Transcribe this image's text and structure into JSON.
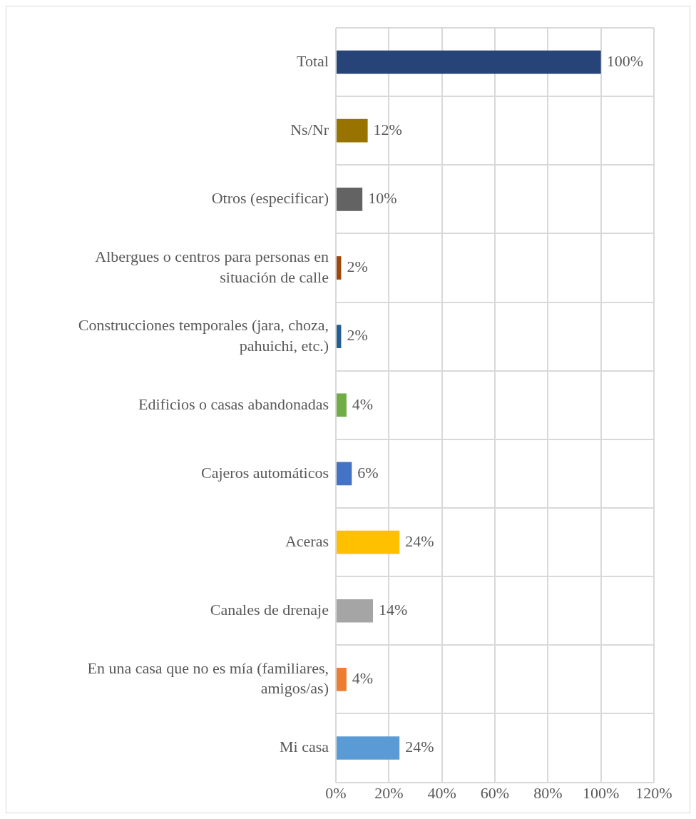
{
  "chart_data": {
    "type": "bar",
    "orientation": "horizontal",
    "categories": [
      "Total",
      "Ns/Nr",
      "Otros (especificar)",
      "Albergues o centros para personas en situación de calle",
      "Construcciones temporales (jara, choza, pahuichi, etc.)",
      "Edificios o casas abandonadas",
      "Cajeros automáticos",
      "Aceras",
      "Canales de drenaje",
      "En una casa que no es mía (familiares, amigos/as)",
      "Mi casa"
    ],
    "values": [
      100,
      12,
      10,
      2,
      2,
      4,
      6,
      24,
      14,
      4,
      24
    ],
    "colors": [
      "#264478",
      "#997300",
      "#636363",
      "#9e480e",
      "#255e91",
      "#70ad47",
      "#4472c4",
      "#ffc000",
      "#a5a5a5",
      "#ed7d31",
      "#5b9bd5"
    ],
    "value_labels": [
      "100%",
      "12%",
      "10%",
      "2%",
      "2%",
      "4%",
      "6%",
      "24%",
      "14%",
      "4%",
      "24%"
    ],
    "xlim": [
      0,
      120
    ],
    "xticks": [
      {
        "value": 0,
        "label": "0%"
      },
      {
        "value": 20,
        "label": "20%"
      },
      {
        "value": 40,
        "label": "40%"
      },
      {
        "value": 60,
        "label": "60%"
      },
      {
        "value": 80,
        "label": "80%"
      },
      {
        "value": 100,
        "label": "100%"
      },
      {
        "value": 120,
        "label": "120%"
      }
    ],
    "grid": true,
    "legend": false
  }
}
